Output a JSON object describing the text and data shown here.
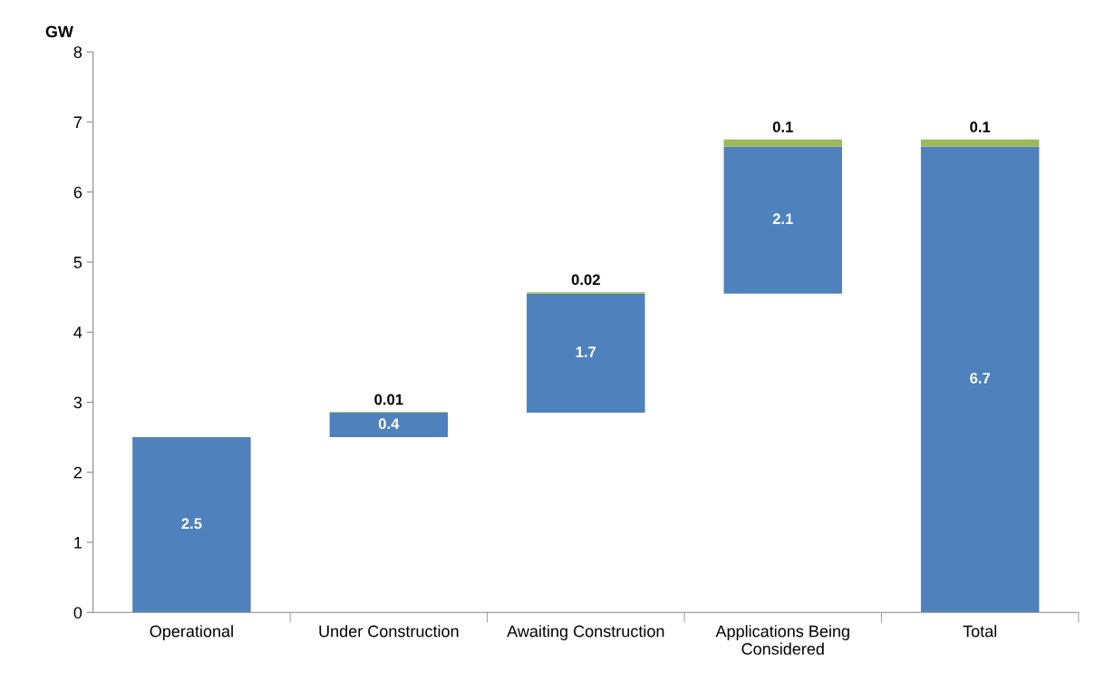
{
  "chart_data": {
    "type": "bar",
    "ylabel": "GW",
    "categories": [
      "Operational",
      "Under Construction",
      "Awaiting Construction",
      "Applications Being\nConsidered",
      "Total"
    ],
    "series": [
      {
        "color": "#4f81bd",
        "base": [
          0,
          2.5,
          2.85,
          4.55,
          0
        ],
        "values": [
          2.5,
          0.35,
          1.7,
          2.1,
          6.65
        ],
        "value_labels": [
          "2.5",
          "0.4",
          "1.7",
          "2.1",
          "6.7"
        ]
      },
      {
        "color": "#9bbb59",
        "base": [
          null,
          2.85,
          4.55,
          6.65,
          6.65
        ],
        "values": [
          null,
          0.01,
          0.02,
          0.1,
          0.1
        ],
        "value_labels": [
          null,
          "0.01",
          "0.02",
          "0.1",
          "0.1"
        ]
      }
    ],
    "ylim": [
      0,
      8
    ],
    "yticks": [
      0,
      1,
      2,
      3,
      4,
      5,
      6,
      7,
      8
    ],
    "grid": false
  }
}
